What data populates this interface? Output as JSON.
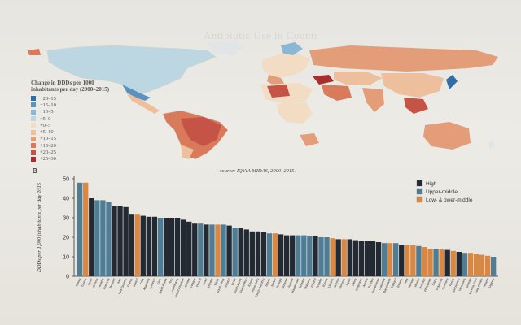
{
  "page": {
    "header_faint": "Antibiotic Use in Countr"
  },
  "map": {
    "legend_title": "Change in DDDs per 1000 inhabitants per day (2000–2015)",
    "legend": [
      {
        "label": "−20–15",
        "color": "#2f6ea6"
      },
      {
        "label": "−15–10",
        "color": "#5a92be"
      },
      {
        "label": "−10–5",
        "color": "#8ab7d3"
      },
      {
        "label": "−5–0",
        "color": "#bcd6e2"
      },
      {
        "label": "+0–5",
        "color": "#f2dcc4"
      },
      {
        "label": "+5–10",
        "color": "#eebf9c"
      },
      {
        "label": "+10–15",
        "color": "#e49d79"
      },
      {
        "label": "+15–20",
        "color": "#d97a5b"
      },
      {
        "label": "+20–25",
        "color": "#c55446"
      },
      {
        "label": "+25–30",
        "color": "#a7302f"
      }
    ],
    "source": "source: IQVIA MIDAS, 2000–2015."
  },
  "chart_data": {
    "type": "bar",
    "panel_label": "B",
    "ylabel": "DDDs per 1,000 inhabitants per day 2015",
    "ylim": [
      0,
      50
    ],
    "yticks": [
      0,
      10,
      20,
      30,
      40,
      50
    ],
    "legend": [
      {
        "label": "High",
        "color": "#232a33"
      },
      {
        "label": "Upper-middle",
        "color": "#4f7d96"
      },
      {
        "label": "Low- & ower-middle",
        "color": "#d98844"
      }
    ],
    "categories": [
      "Turkey",
      "Tunisia",
      "Spain",
      "Greece",
      "Algeria",
      "Romania",
      "Belgium",
      "Italy",
      "New Zealand",
      "France",
      "Ireland",
      "USA",
      "Argentina",
      "Lebanon",
      "Chile",
      "Saudi Arabia",
      "Peru",
      "Luxembourg",
      "United Kingdom",
      "Croatia",
      "Canada",
      "Poland",
      "Israel",
      "Australia",
      "Egypt",
      "South Africa",
      "Iceland",
      "Brazil",
      "South Korea",
      "Puerto Rico",
      "Kuwait",
      "Hong Kong",
      "Czech Republic",
      "Taiwan",
      "Jordan",
      "Portugal",
      "Slovenia",
      "Uruguay",
      "Kazakhstan",
      "Bulgaria",
      "Malaysia",
      "Finland",
      "Ecuador",
      "Russia",
      "Ukraine",
      "Norway",
      "Morocco",
      "Japan",
      "Latvia",
      "Singapore",
      "Austria",
      "Sweden",
      "Netherlands",
      "Colombia",
      "Bangladesh",
      "Thailand",
      "Estonia",
      "India",
      "Vietnam",
      "Mexico",
      "Pakistan",
      "Philippines",
      "China",
      "Indonesia",
      "Germany",
      "Kenya",
      "Switzerland",
      "Venezuela",
      "Senegal",
      "Burkina Faso",
      "Cote d'Ivoire",
      "Nigeria",
      "Uganda"
    ],
    "tick_labels": [
      "Turkey",
      "Tunisia",
      "Spain",
      "Greece",
      "Algeria",
      "Romania",
      "Belgium",
      "Italy",
      "New Zealand",
      "France",
      "Ireland",
      "USA",
      "Argentina",
      "Lebanon",
      "Chile",
      "Saudi Arabia",
      "Peru",
      "Luxembourg",
      "United Kingdom",
      "Croatia",
      "Canada",
      "Poland",
      "Israel",
      "Australia",
      "Egypt",
      "South Africa",
      "Iceland",
      "Brazil",
      "South Korea",
      "Puerto Rico",
      "Kuwait",
      "Hong Kong",
      "Czech Republic",
      "Taiwan",
      "Jordan",
      "Portugal",
      "Slovenia",
      "Uruguay",
      "Kazakhstan",
      "Bulgaria",
      "Malaysia",
      "Finland",
      "Ecuador",
      "Russia",
      "Ukraine",
      "Norway",
      "Morocco",
      "Japan",
      "Latvia",
      "Singapore",
      "Austria",
      "Sweden",
      "Netherlands",
      "Colombia",
      "Bangladesh",
      "Thailand",
      "Estonia",
      "India",
      "Vietnam",
      "Mexico",
      "Pakistan",
      "Philippines",
      "China",
      "Indonesia",
      "Germany",
      "Kenya",
      "Switzerland",
      "Venezuela",
      "Senegal",
      "Burkina Faso",
      "Cote d'Ivoire",
      "Nigeria",
      "Uganda"
    ],
    "values": [
      48,
      48,
      40,
      39,
      39,
      38,
      36,
      36,
      35.5,
      32,
      32,
      31,
      30.5,
      30.5,
      30,
      30,
      30,
      30,
      29,
      28,
      27,
      27,
      26.5,
      26.5,
      26.5,
      26.5,
      26,
      25,
      25,
      24,
      23,
      23,
      22.5,
      22,
      22,
      21.5,
      21,
      21,
      21,
      21,
      20.5,
      20.5,
      20,
      20,
      19.5,
      19,
      19,
      19,
      18.5,
      18,
      18,
      18,
      17.5,
      17,
      17,
      17,
      16,
      16,
      16,
      15.5,
      15,
      14,
      14,
      14,
      13.5,
      13,
      12.5,
      12,
      12,
      11.5,
      11,
      10.5,
      10
    ],
    "groups": [
      "U",
      "L",
      "H",
      "U",
      "U",
      "U",
      "H",
      "H",
      "H",
      "H",
      "L",
      "H",
      "H",
      "H",
      "U",
      "H",
      "H",
      "H",
      "H",
      "H",
      "H",
      "U",
      "H",
      "U",
      "L",
      "U",
      "H",
      "U",
      "H",
      "H",
      "H",
      "H",
      "H",
      "U",
      "L",
      "H",
      "H",
      "H",
      "U",
      "U",
      "U",
      "H",
      "U",
      "U",
      "L",
      "H",
      "L",
      "H",
      "H",
      "H",
      "H",
      "H",
      "H",
      "U",
      "L",
      "U",
      "H",
      "L",
      "L",
      "U",
      "L",
      "L",
      "U",
      "L",
      "H",
      "L",
      "H",
      "U",
      "L",
      "L",
      "L",
      "L",
      "U"
    ]
  }
}
